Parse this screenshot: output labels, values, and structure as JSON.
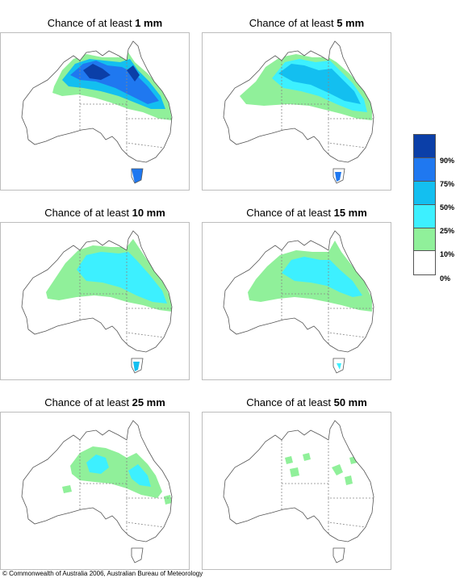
{
  "panels": [
    {
      "prefix": "Chance of at least",
      "amount": "1 mm"
    },
    {
      "prefix": "Chance of at least",
      "amount": "5 mm"
    },
    {
      "prefix": "Chance of at least",
      "amount": "10 mm"
    },
    {
      "prefix": "Chance of at least",
      "amount": "15 mm"
    },
    {
      "prefix": "Chance of at least",
      "amount": "25 mm"
    },
    {
      "prefix": "Chance of at least",
      "amount": "50 mm"
    }
  ],
  "legend": {
    "labels": [
      "90%",
      "75%",
      "50%",
      "25%",
      "10%",
      "0%"
    ],
    "colors": [
      "#0b3fa8",
      "#1f78f0",
      "#13bff0",
      "#3df0ff",
      "#90f09a",
      "#ffffff"
    ]
  },
  "copyright": "© Commonwealth of Australia 2006, Australian Bureau of Meteorology"
}
